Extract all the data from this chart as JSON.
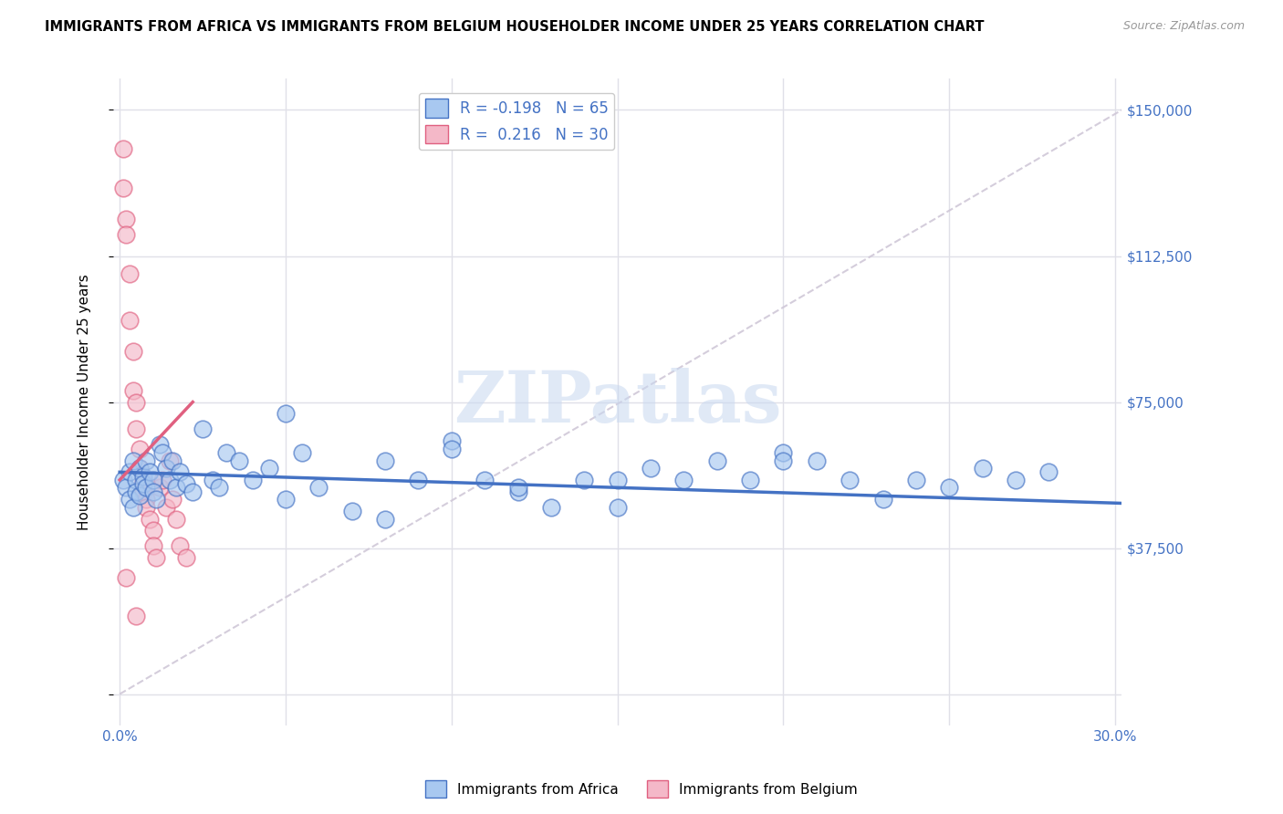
{
  "title": "IMMIGRANTS FROM AFRICA VS IMMIGRANTS FROM BELGIUM HOUSEHOLDER INCOME UNDER 25 YEARS CORRELATION CHART",
  "source": "Source: ZipAtlas.com",
  "ylabel": "Householder Income Under 25 years",
  "legend_label1": "Immigrants from Africa",
  "legend_label2": "Immigrants from Belgium",
  "r1": "-0.198",
  "n1": "65",
  "r2": "0.216",
  "n2": "30",
  "xlim": [
    -0.002,
    0.302
  ],
  "ylim": [
    -8000,
    158000
  ],
  "yticks": [
    0,
    37500,
    75000,
    112500,
    150000
  ],
  "xticks": [
    0.0,
    0.05,
    0.1,
    0.15,
    0.2,
    0.25,
    0.3
  ],
  "color_africa": "#A8C8F0",
  "color_belgium": "#F4B8C8",
  "color_africa_line": "#4472C4",
  "color_belgium_line": "#E06080",
  "color_refline": "#D0C8D8",
  "watermark_color": "#C8D8F0",
  "africa_x": [
    0.001,
    0.002,
    0.003,
    0.003,
    0.004,
    0.004,
    0.005,
    0.005,
    0.006,
    0.006,
    0.007,
    0.007,
    0.008,
    0.008,
    0.009,
    0.01,
    0.01,
    0.011,
    0.012,
    0.013,
    0.014,
    0.015,
    0.016,
    0.017,
    0.018,
    0.02,
    0.022,
    0.025,
    0.028,
    0.032,
    0.036,
    0.04,
    0.045,
    0.05,
    0.055,
    0.06,
    0.07,
    0.08,
    0.09,
    0.1,
    0.11,
    0.12,
    0.13,
    0.14,
    0.15,
    0.16,
    0.17,
    0.18,
    0.19,
    0.2,
    0.21,
    0.22,
    0.23,
    0.24,
    0.25,
    0.26,
    0.27,
    0.28,
    0.1,
    0.15,
    0.2,
    0.05,
    0.12,
    0.08,
    0.03
  ],
  "africa_y": [
    55000,
    53000,
    57000,
    50000,
    60000,
    48000,
    55000,
    52000,
    58000,
    51000,
    56000,
    54000,
    53000,
    60000,
    57000,
    55000,
    52000,
    50000,
    64000,
    62000,
    58000,
    55000,
    60000,
    53000,
    57000,
    54000,
    52000,
    68000,
    55000,
    62000,
    60000,
    55000,
    58000,
    72000,
    62000,
    53000,
    47000,
    60000,
    55000,
    65000,
    55000,
    52000,
    48000,
    55000,
    48000,
    58000,
    55000,
    60000,
    55000,
    62000,
    60000,
    55000,
    50000,
    55000,
    53000,
    58000,
    55000,
    57000,
    63000,
    55000,
    60000,
    50000,
    53000,
    45000,
    53000
  ],
  "belgium_x": [
    0.001,
    0.001,
    0.002,
    0.002,
    0.003,
    0.003,
    0.004,
    0.004,
    0.005,
    0.005,
    0.006,
    0.006,
    0.007,
    0.007,
    0.008,
    0.008,
    0.009,
    0.01,
    0.01,
    0.011,
    0.012,
    0.013,
    0.014,
    0.015,
    0.016,
    0.017,
    0.018,
    0.02,
    0.005,
    0.002
  ],
  "belgium_y": [
    140000,
    130000,
    122000,
    118000,
    108000,
    96000,
    88000,
    78000,
    75000,
    68000,
    63000,
    58000,
    55000,
    52000,
    50000,
    48000,
    45000,
    42000,
    38000,
    35000,
    53000,
    55000,
    48000,
    60000,
    50000,
    45000,
    38000,
    35000,
    20000,
    30000
  ],
  "africa_trend_x": [
    0.0,
    0.302
  ],
  "africa_trend_y": [
    57000,
    49000
  ],
  "belgium_trend_x": [
    0.0,
    0.022
  ],
  "belgium_trend_y": [
    55000,
    75000
  ],
  "refline_x": [
    0.0,
    0.302
  ],
  "refline_y": [
    0,
    150000
  ]
}
